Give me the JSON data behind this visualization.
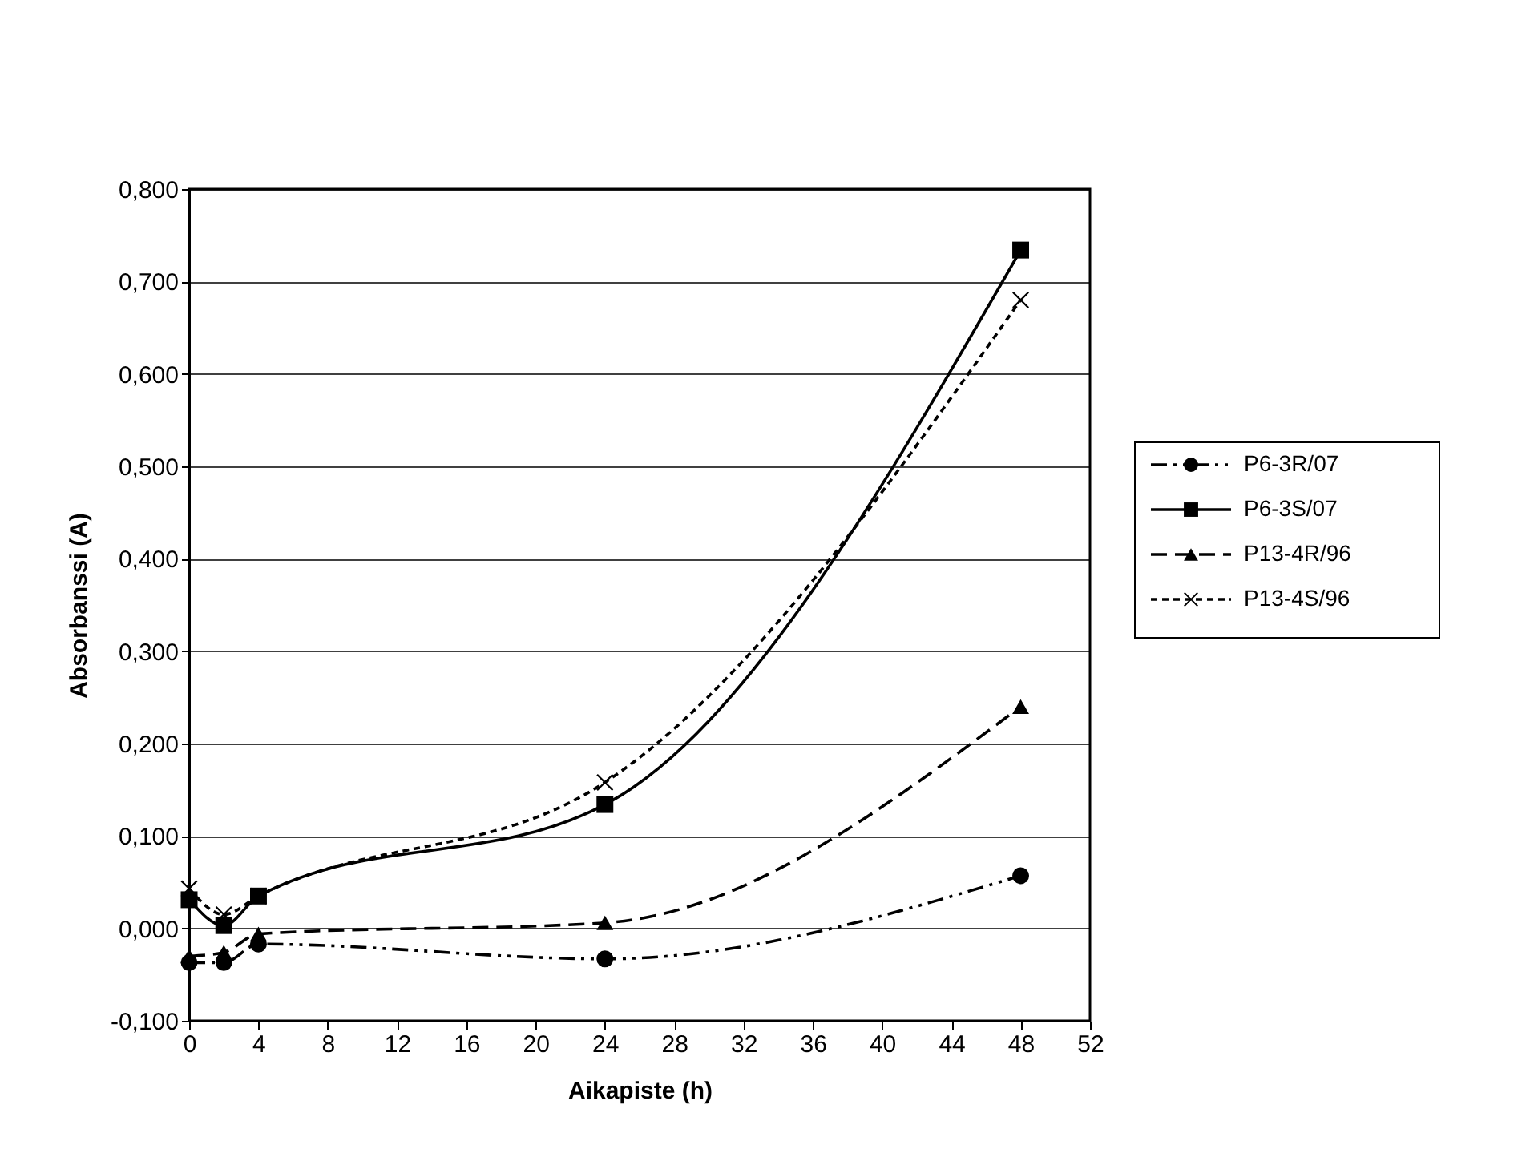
{
  "chart_data": {
    "type": "line",
    "xlabel": "Aikapiste (h)",
    "ylabel": "Absorbanssi (A)",
    "x": [
      0,
      2,
      4,
      24,
      48
    ],
    "series": [
      {
        "name": "P6-3R/07",
        "color": "#000000",
        "marker": "circle",
        "line_style": "dashdot",
        "values": [
          -0.037,
          -0.037,
          -0.017,
          -0.033,
          0.057
        ]
      },
      {
        "name": "P6-3S/07",
        "color": "#000000",
        "marker": "square",
        "line_style": "solid",
        "values": [
          0.031,
          0.003,
          0.035,
          0.134,
          0.734
        ]
      },
      {
        "name": "P13-4R/96",
        "color": "#000000",
        "marker": "triangle",
        "line_style": "dashed",
        "values": [
          -0.03,
          -0.026,
          -0.006,
          0.006,
          0.24
        ]
      },
      {
        "name": "P13-4S/96",
        "color": "#000000",
        "marker": "cross",
        "line_style": "dotted",
        "values": [
          0.043,
          0.015,
          0.035,
          0.158,
          0.68
        ]
      }
    ],
    "xlim": [
      0,
      52
    ],
    "xticks": [
      0,
      4,
      8,
      12,
      16,
      20,
      24,
      28,
      32,
      36,
      40,
      44,
      48,
      52
    ],
    "ylim": [
      -0.1,
      0.8
    ],
    "yticks": [
      {
        "value": -0.1,
        "label": "-0,100"
      },
      {
        "value": 0,
        "label": "0,000"
      },
      {
        "value": 0.1,
        "label": "0,100"
      },
      {
        "value": 0.2,
        "label": "0,200"
      },
      {
        "value": 0.3,
        "label": "0,300"
      },
      {
        "value": 0.4,
        "label": "0,400"
      },
      {
        "value": 0.5,
        "label": "0,500"
      },
      {
        "value": 0.6,
        "label": "0,600"
      },
      {
        "value": 0.7,
        "label": "0,700"
      },
      {
        "value": 0.8,
        "label": "0,800"
      }
    ],
    "grid": "y",
    "legend": "right"
  }
}
